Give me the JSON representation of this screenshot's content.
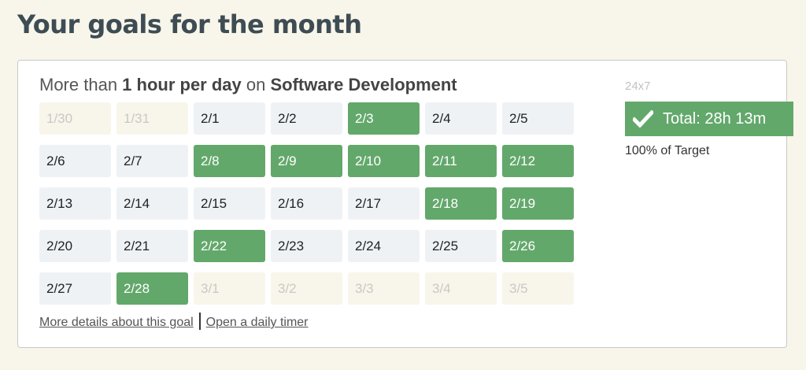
{
  "page_title": "Your goals for the month",
  "goal": {
    "heading_prefix": "More than ",
    "heading_amount": "1 hour per day",
    "heading_mid": " on ",
    "heading_category": "Software Development",
    "mode_label": "24x7",
    "total_text": "Total: 28h 13m",
    "target_text": "100% of Target",
    "links": {
      "details": "More details about this goal",
      "timer": "Open a daily timer"
    },
    "days": [
      {
        "label": "1/30",
        "state": "out"
      },
      {
        "label": "1/31",
        "state": "out"
      },
      {
        "label": "2/1",
        "state": "normal"
      },
      {
        "label": "2/2",
        "state": "normal"
      },
      {
        "label": "2/3",
        "state": "met"
      },
      {
        "label": "2/4",
        "state": "normal"
      },
      {
        "label": "2/5",
        "state": "normal"
      },
      {
        "label": "2/6",
        "state": "normal"
      },
      {
        "label": "2/7",
        "state": "normal"
      },
      {
        "label": "2/8",
        "state": "met"
      },
      {
        "label": "2/9",
        "state": "met"
      },
      {
        "label": "2/10",
        "state": "met"
      },
      {
        "label": "2/11",
        "state": "met"
      },
      {
        "label": "2/12",
        "state": "met"
      },
      {
        "label": "2/13",
        "state": "normal"
      },
      {
        "label": "2/14",
        "state": "normal"
      },
      {
        "label": "2/15",
        "state": "normal"
      },
      {
        "label": "2/16",
        "state": "normal"
      },
      {
        "label": "2/17",
        "state": "normal"
      },
      {
        "label": "2/18",
        "state": "met"
      },
      {
        "label": "2/19",
        "state": "met"
      },
      {
        "label": "2/20",
        "state": "normal"
      },
      {
        "label": "2/21",
        "state": "normal"
      },
      {
        "label": "2/22",
        "state": "met"
      },
      {
        "label": "2/23",
        "state": "normal"
      },
      {
        "label": "2/24",
        "state": "normal"
      },
      {
        "label": "2/25",
        "state": "normal"
      },
      {
        "label": "2/26",
        "state": "met"
      },
      {
        "label": "2/27",
        "state": "normal"
      },
      {
        "label": "2/28",
        "state": "met"
      },
      {
        "label": "3/1",
        "state": "out"
      },
      {
        "label": "3/2",
        "state": "out"
      },
      {
        "label": "3/3",
        "state": "out"
      },
      {
        "label": "3/4",
        "state": "out"
      },
      {
        "label": "3/5",
        "state": "out"
      }
    ]
  },
  "icons": {
    "total_badge": "checkmark-icon"
  },
  "colors": {
    "background": "#f8f6ea",
    "met": "#63a86b",
    "normal_day": "#eff2f5",
    "title": "#3e4c54"
  }
}
